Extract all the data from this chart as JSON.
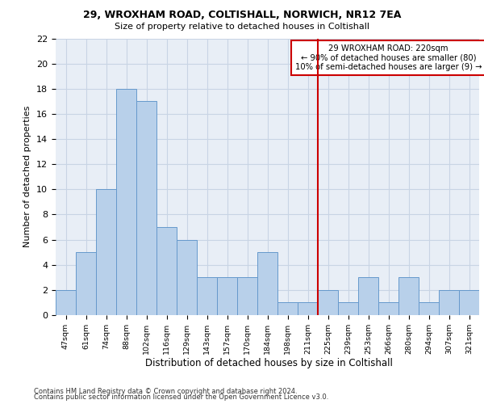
{
  "title1": "29, WROXHAM ROAD, COLTISHALL, NORWICH, NR12 7EA",
  "title2": "Size of property relative to detached houses in Coltishall",
  "xlabel": "Distribution of detached houses by size in Coltishall",
  "ylabel": "Number of detached properties",
  "bar_labels": [
    "47sqm",
    "61sqm",
    "74sqm",
    "88sqm",
    "102sqm",
    "116sqm",
    "129sqm",
    "143sqm",
    "157sqm",
    "170sqm",
    "184sqm",
    "198sqm",
    "211sqm",
    "225sqm",
    "239sqm",
    "253sqm",
    "266sqm",
    "280sqm",
    "294sqm",
    "307sqm",
    "321sqm"
  ],
  "bar_values": [
    2,
    5,
    10,
    18,
    17,
    7,
    6,
    3,
    3,
    3,
    5,
    1,
    1,
    2,
    1,
    3,
    1,
    3,
    1,
    2,
    2
  ],
  "bar_color": "#b8d0ea",
  "bar_edgecolor": "#6699cc",
  "grid_color": "#c8d4e4",
  "background_color": "#e8eef6",
  "annotation_text": "29 WROXHAM ROAD: 220sqm\n← 90% of detached houses are smaller (80)\n10% of semi-detached houses are larger (9) →",
  "vline_index": 12.5,
  "vline_color": "#cc0000",
  "annotation_box_facecolor": "#ffffff",
  "annotation_box_edgecolor": "#cc0000",
  "ylim": [
    0,
    22
  ],
  "yticks": [
    0,
    2,
    4,
    6,
    8,
    10,
    12,
    14,
    16,
    18,
    20,
    22
  ],
  "footer1": "Contains HM Land Registry data © Crown copyright and database right 2024.",
  "footer2": "Contains public sector information licensed under the Open Government Licence v3.0."
}
